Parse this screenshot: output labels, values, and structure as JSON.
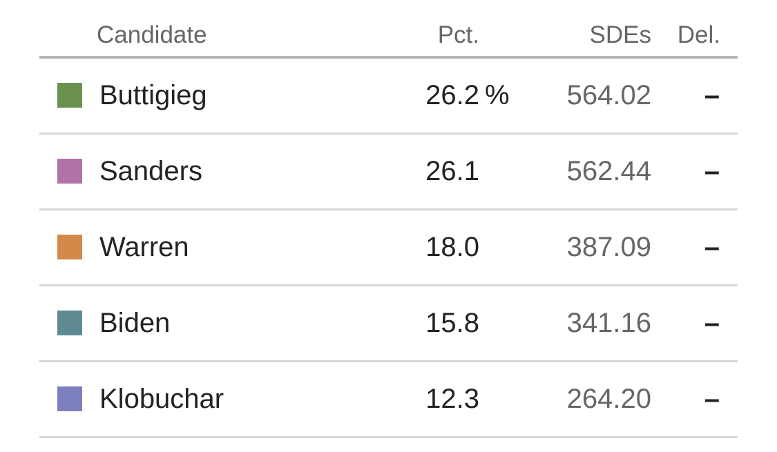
{
  "table": {
    "header": [
      "Candidate",
      "Pct.",
      "SDEs",
      "Del."
    ],
    "rows": [
      {
        "color": "#6a9150",
        "name": "Buttigieg",
        "pct": "26.2",
        "pct_unit": "%",
        "sdes": "564.02",
        "del": "–"
      },
      {
        "color": "#b073a8",
        "name": "Sanders",
        "pct": "26.1",
        "sdes": "562.44",
        "del": "–"
      },
      {
        "color": "#d3894a",
        "name": "Warren",
        "pct": "18.0",
        "sdes": "387.09",
        "del": "–"
      },
      {
        "color": "#5f8a94",
        "name": "Biden",
        "pct": "15.8",
        "sdes": "341.16",
        "del": "–"
      },
      {
        "color": "#7e7fbd",
        "name": "Klobuchar",
        "pct": "12.3",
        "sdes": "264.20",
        "del": "–"
      }
    ]
  }
}
